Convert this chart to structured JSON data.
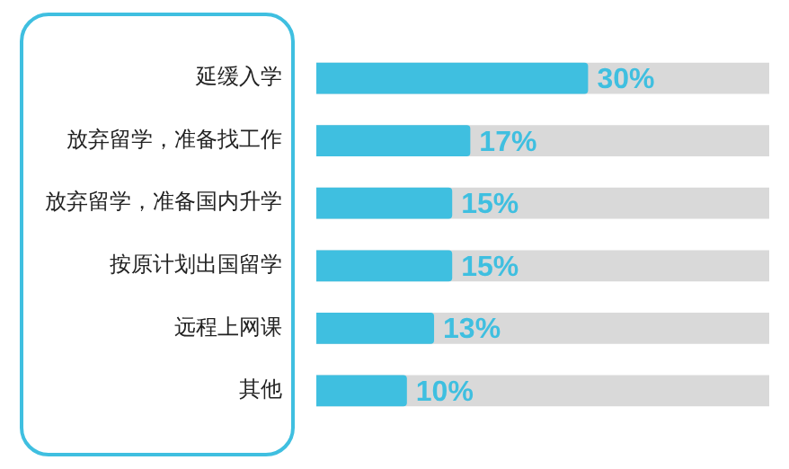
{
  "chart_data": {
    "type": "bar",
    "orientation": "horizontal",
    "categories": [
      "延缓入学",
      "放弃留学，准备找工作",
      "放弃留学，准备国内升学",
      "按原计划出国留学",
      "远程上网课",
      "其他"
    ],
    "values": [
      30,
      17,
      15,
      15,
      13,
      10
    ],
    "value_labels": [
      "30%",
      "17%",
      "15%",
      "15%",
      "13%",
      "10%"
    ],
    "color": "#3fbfe0",
    "tick_labels": "y"
  }
}
